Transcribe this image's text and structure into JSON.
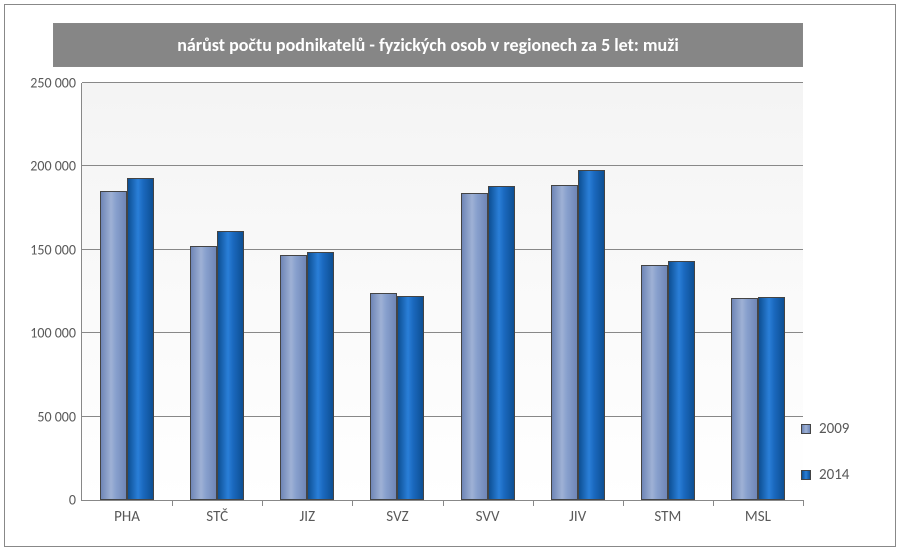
{
  "chart": {
    "type": "bar",
    "title": "nárůst počtu podnikatelů - fyzických osob v regionech za 5 let: muži",
    "title_fontsize": 18,
    "title_color": "#ffffff",
    "title_bg": "#868686",
    "background_gradient_top": "#f4f4f4",
    "background_gradient_bottom": "#ffffff",
    "axis_color": "#888888",
    "grid_color": "#888888",
    "tick_label_color": "#595959",
    "label_fontsize": 15,
    "ylim": [
      0,
      250000
    ],
    "ytick_step": 50000,
    "ytick_labels": [
      "0",
      "50 000",
      "100 000",
      "150 000",
      "200 000",
      "250 000"
    ],
    "categories": [
      "PHA",
      "STČ",
      "JIZ",
      "SVZ",
      "SVV",
      "JIV",
      "STM",
      "MSL"
    ],
    "series": [
      {
        "name": "2009",
        "color": "#8ea4cf",
        "values": [
          185000,
          152000,
          147000,
          124000,
          184000,
          189000,
          141000,
          121000
        ]
      },
      {
        "name": "2014",
        "color": "#1860b0",
        "values": [
          193000,
          161000,
          148500,
          122500,
          188000,
          198000,
          143500,
          121500
        ]
      }
    ],
    "bar_width_ratio": 0.3,
    "group_gap_ratio": 0.4,
    "legend_position": "right-bottom"
  }
}
